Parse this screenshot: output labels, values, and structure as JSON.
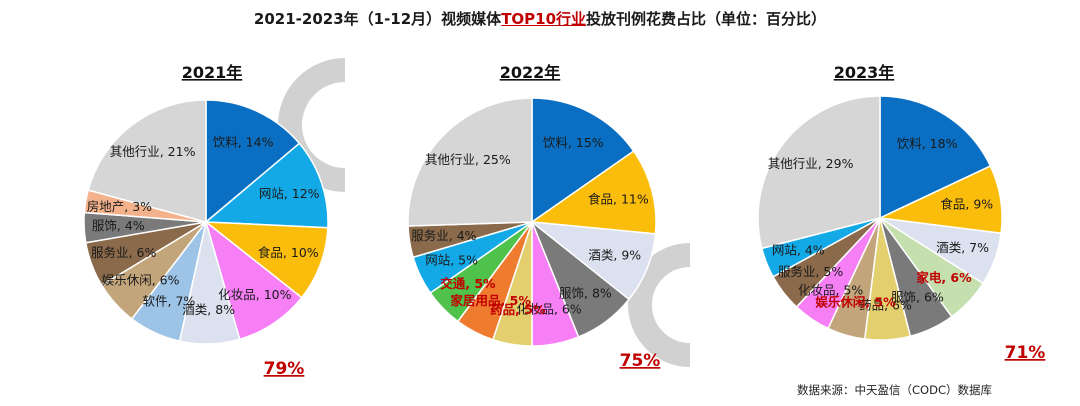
{
  "title": {
    "prefix": "2021-2023年（1-12月）视频媒体",
    "highlight": "TOP10行业",
    "suffix": "投放刊例花费占比（单位：百分比）"
  },
  "source": "数据来源：中天盈信（CODC）数据库",
  "colors": {
    "饮料": "#0a6fc2",
    "网站": "#13a9e6",
    "食品": "#fbbd0c",
    "化妆品": "#f67ff5",
    "酒类": "#dce1ef",
    "软件": "#9dc4e6",
    "娱乐休闲": "#c3a57b",
    "服务业": "#8a6a4a",
    "服饰": "#7a7a7a",
    "房地产": "#f3b28c",
    "其他行业": "#d6d6d6",
    "交通": "#4ec24a",
    "家居用品": "#ef7b2f",
    "药品": "#e4cf6e",
    "家电": "#c6dfae",
    "highlight_red": "#c00000"
  },
  "chart_data": [
    {
      "type": "pie",
      "title": "2021年",
      "total_top10": "79%",
      "slices": [
        {
          "name": "饮料",
          "value": 14,
          "label": "饮料, 14%"
        },
        {
          "name": "网站",
          "value": 12,
          "label": "网站, 12%"
        },
        {
          "name": "食品",
          "value": 10,
          "label": "食品, 10%"
        },
        {
          "name": "化妆品",
          "value": 10,
          "label": "化妆品, 10%"
        },
        {
          "name": "酒类",
          "value": 8,
          "label": "酒类, 8%"
        },
        {
          "name": "软件",
          "value": 7,
          "label": "软件, 7%"
        },
        {
          "name": "娱乐休闲",
          "value": 6,
          "label": "娱乐休闲, 6%"
        },
        {
          "name": "服务业",
          "value": 6,
          "label": "服务业, 6%"
        },
        {
          "name": "服饰",
          "value": 4,
          "label": "服饰, 4%"
        },
        {
          "name": "房地产",
          "value": 3,
          "label": "房地产, 3%"
        },
        {
          "name": "其他行业",
          "value": 21,
          "label": "其他行业, 21%"
        }
      ]
    },
    {
      "type": "pie",
      "title": "2022年",
      "total_top10": "75%",
      "slices": [
        {
          "name": "饮料",
          "value": 15,
          "label": "饮料, 15%"
        },
        {
          "name": "食品",
          "value": 11,
          "label": "食品, 11%"
        },
        {
          "name": "酒类",
          "value": 9,
          "label": "酒类, 9%"
        },
        {
          "name": "服饰",
          "value": 8,
          "label": "服饰, 8%"
        },
        {
          "name": "化妆品",
          "value": 6,
          "label": "化妆品, 6%"
        },
        {
          "name": "药品",
          "value": 5,
          "label": "药品, 5%",
          "highlight": true
        },
        {
          "name": "家居用品",
          "value": 5,
          "label": "家居用品, 5%",
          "highlight": true
        },
        {
          "name": "交通",
          "value": 5,
          "label": "交通, 5%",
          "highlight": true
        },
        {
          "name": "网站",
          "value": 5,
          "label": "网站, 5%"
        },
        {
          "name": "服务业",
          "value": 4,
          "label": "服务业, 4%"
        },
        {
          "name": "其他行业",
          "value": 25,
          "label": "其他行业, 25%"
        }
      ]
    },
    {
      "type": "pie",
      "title": "2023年",
      "total_top10": "71%",
      "slices": [
        {
          "name": "饮料",
          "value": 18,
          "label": "饮料, 18%"
        },
        {
          "name": "食品",
          "value": 9,
          "label": "食品, 9%"
        },
        {
          "name": "酒类",
          "value": 7,
          "label": "酒类, 7%"
        },
        {
          "name": "家电",
          "value": 6,
          "label": "家电, 6%",
          "highlight": true
        },
        {
          "name": "服饰",
          "value": 6,
          "label": "服饰, 6%"
        },
        {
          "name": "药品",
          "value": 6,
          "label": "药品, 6%"
        },
        {
          "name": "娱乐休闲",
          "value": 5,
          "label": "娱乐休闲, 5%",
          "highlight": true
        },
        {
          "name": "化妆品",
          "value": 5,
          "label": "化妆品, 5%"
        },
        {
          "name": "服务业",
          "value": 5,
          "label": "服务业, 5%"
        },
        {
          "name": "网站",
          "value": 4,
          "label": "网站, 4%"
        },
        {
          "name": "其他行业",
          "value": 29,
          "label": "其他行业, 29%"
        }
      ]
    }
  ]
}
